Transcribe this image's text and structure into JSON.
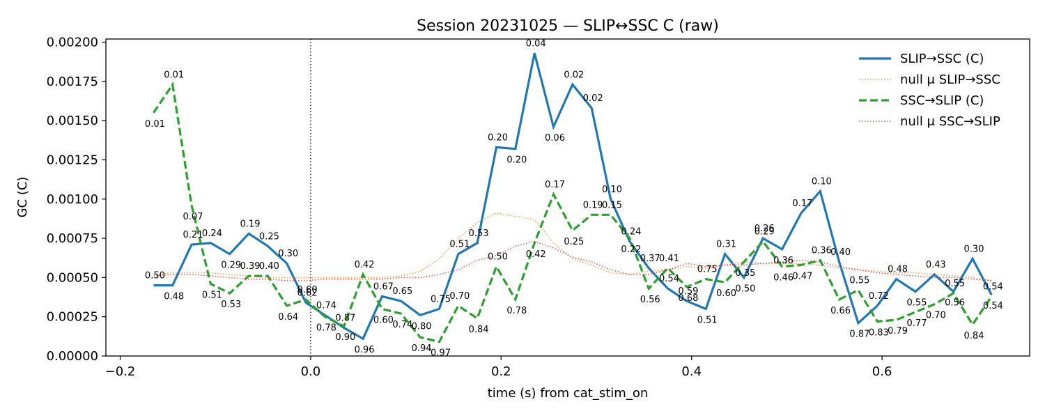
{
  "chart_data": {
    "type": "line",
    "title": "Session 20231025 — SLIP↔SSC C (raw)",
    "xlabel": "time (s) from cat_stim_on",
    "ylabel": "GC (C)",
    "xlim": [
      -0.215,
      0.755
    ],
    "ylim": [
      0,
      0.00202
    ],
    "xticks": [
      -0.2,
      0.0,
      0.2,
      0.4,
      0.6
    ],
    "xtick_labels": [
      "−0.2",
      "0.0",
      "0.2",
      "0.4",
      "0.6"
    ],
    "yticks": [
      0,
      0.00025,
      0.0005,
      0.00075,
      0.001,
      0.00125,
      0.0015,
      0.00175,
      0.002
    ],
    "ytick_labels": [
      "0.00000",
      "0.00025",
      "0.00050",
      "0.00075",
      "0.00100",
      "0.00125",
      "0.00150",
      "0.00175",
      "0.00200"
    ],
    "vline_x": 0.0,
    "grid": false,
    "legend_position": "top-right",
    "x": [
      -0.165,
      -0.145,
      -0.125,
      -0.105,
      -0.085,
      -0.065,
      -0.045,
      -0.025,
      -0.005,
      0.015,
      0.035,
      0.055,
      0.075,
      0.095,
      0.115,
      0.135,
      0.155,
      0.175,
      0.195,
      0.215,
      0.235,
      0.255,
      0.275,
      0.295,
      0.315,
      0.335,
      0.355,
      0.375,
      0.395,
      0.415,
      0.435,
      0.455,
      0.475,
      0.495,
      0.515,
      0.535,
      0.555,
      0.575,
      0.595,
      0.615,
      0.635,
      0.655,
      0.675,
      0.695,
      0.715
    ],
    "series": [
      {
        "name": "SLIP→SSC (C)",
        "color": "#1f77b4",
        "style": "solid",
        "values": [
          0.00045,
          0.00045,
          0.00071,
          0.00072,
          0.00065,
          0.00078,
          0.0007,
          0.00059,
          0.00034,
          0.00026,
          0.00018,
          0.00011,
          0.00038,
          0.00035,
          0.00026,
          0.0003,
          0.00065,
          0.00072,
          0.00133,
          0.00132,
          0.00193,
          0.00146,
          0.00173,
          0.00158,
          0.001,
          0.00073,
          0.00056,
          0.00043,
          0.00035,
          0.0003,
          0.00065,
          0.0005,
          0.00075,
          0.00068,
          0.00091,
          0.00105,
          0.0006,
          0.00021,
          0.00032,
          0.00049,
          0.00041,
          0.00052,
          0.00041,
          0.00062,
          0.00039
        ],
        "annotations": [
          "0.50",
          "0.48",
          "0.21",
          "0.24",
          "0.29",
          "0.19",
          "0.25",
          "0.30",
          "0.62",
          "0.74",
          "0.87",
          "0.96",
          "0.67",
          "0.65",
          "0.80",
          "0.75",
          "0.51",
          "0.53",
          "0.20",
          "0.20",
          "0.04",
          "0.06",
          "0.02",
          "0.02",
          "0.10",
          "0.24",
          "0.37",
          "0.54",
          "0.59",
          "0.51",
          "0.31",
          "0.50",
          "0.26",
          "0.36",
          "0.17",
          "0.10",
          "0.40",
          "0.87",
          "0.72",
          "0.48",
          "0.55",
          "0.43",
          "0.56",
          "0.30",
          "0.54"
        ]
      },
      {
        "name": "null μ SLIP→SSC",
        "color": "#ff7f0e",
        "style": "dotted",
        "values": [
          0.00052,
          0.00053,
          0.00053,
          0.00053,
          0.00052,
          0.00051,
          0.0005,
          0.0005,
          0.0005,
          0.0005,
          0.0005,
          0.0005,
          0.0005,
          0.00051,
          0.00054,
          0.00062,
          0.00075,
          0.00085,
          0.00091,
          0.00089,
          0.00087,
          0.00072,
          0.00062,
          0.00058,
          0.00053,
          0.00052,
          0.00054,
          0.00055,
          0.00057,
          0.00056,
          0.00058,
          0.0006,
          0.00059,
          0.00059,
          0.00059,
          0.00058,
          0.00056,
          0.00055,
          0.00054,
          0.00053,
          0.00053,
          0.00052,
          0.00051,
          0.0005,
          0.00048
        ]
      },
      {
        "name": "SSC→SLIP (C)",
        "color": "#2ca02c",
        "style": "dashed",
        "values": [
          0.00155,
          0.00173,
          0.00096,
          0.00046,
          0.0004,
          0.00051,
          0.00051,
          0.00032,
          0.00036,
          0.00025,
          0.00019,
          0.00052,
          0.0003,
          0.00027,
          0.00012,
          9e-05,
          0.00032,
          0.00024,
          0.00057,
          0.00036,
          0.00072,
          0.00103,
          0.0008,
          0.0009,
          0.0009,
          0.00075,
          0.00043,
          0.00056,
          0.00044,
          0.00049,
          0.00047,
          0.0006,
          0.00073,
          0.00057,
          0.00058,
          0.00061,
          0.00036,
          0.00042,
          0.00022,
          0.00023,
          0.00028,
          0.00033,
          0.0004,
          0.0002,
          0.00038
        ],
        "annotations": [
          "0.01",
          "0.01",
          "0.07",
          "0.51",
          "0.53",
          "0.39",
          "0.40",
          "0.64",
          "0.60",
          "0.78",
          "0.90",
          "0.42",
          "0.60",
          "0.74",
          "0.94",
          "0.97",
          "0.70",
          "0.84",
          "0.50",
          "0.78",
          "0.42",
          "0.17",
          "0.25",
          "0.19",
          "0.15",
          "0.22",
          "0.56",
          "0.41",
          "0.68",
          "0.75",
          "0.60",
          "0.35",
          "0.29",
          "0.46",
          "0.47",
          "0.36",
          "0.66",
          "0.55",
          "0.83",
          "0.79",
          "0.77",
          "0.70",
          "0.55",
          "0.84",
          "0.54"
        ]
      },
      {
        "name": "null μ SSC→SLIP",
        "color": "#d62728",
        "style": "dotted",
        "values": [
          0.00051,
          0.00052,
          0.00052,
          0.00051,
          0.0005,
          0.00049,
          0.00049,
          0.00048,
          0.00048,
          0.00049,
          0.00049,
          0.00049,
          0.00049,
          0.0005,
          0.0005,
          0.00052,
          0.00055,
          0.00061,
          0.00064,
          0.0007,
          0.00073,
          0.00069,
          0.00063,
          0.0006,
          0.00055,
          0.00052,
          0.00052,
          0.00055,
          0.00059,
          0.00057,
          0.00058,
          0.00058,
          0.00059,
          0.0006,
          0.00061,
          0.0006,
          0.00057,
          0.00055,
          0.00053,
          0.00052,
          0.00051,
          0.0005,
          0.0005,
          0.00049,
          0.00048
        ]
      }
    ]
  }
}
